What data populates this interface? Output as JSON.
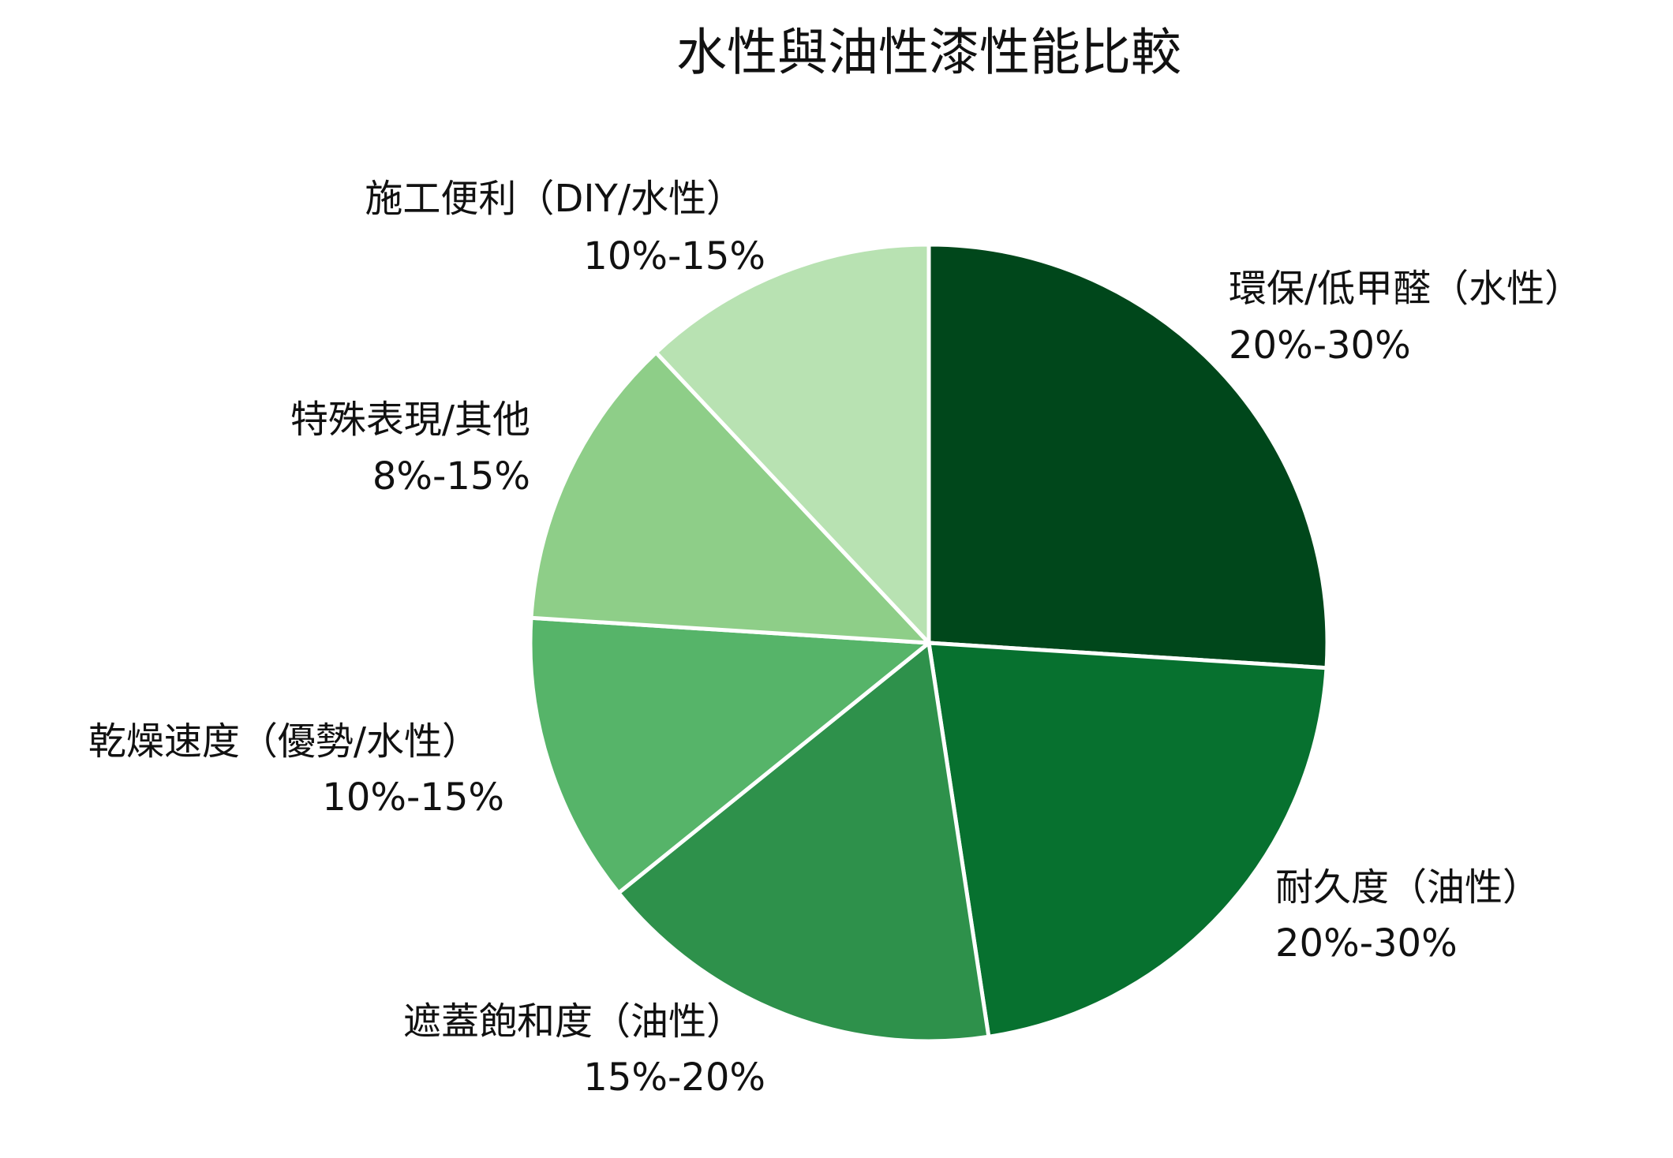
{
  "chart_data": {
    "type": "pie",
    "title": "水性與油性漆性能比較",
    "categories": [
      "環保/低甲醛（水性）",
      "耐久度（油性）",
      "遮蓋飽和度（油性）",
      "乾燥速度（優勢/水性）",
      "特殊表現/其他",
      "施工便利（DIY/水性）"
    ],
    "values": [
      26,
      21.6,
      16.6,
      11.8,
      12,
      12
    ],
    "ranges": [
      "20%-30%",
      "20%-30%",
      "15%-20%",
      "10%-15%",
      "8%-15%",
      "10%-15%"
    ],
    "colors": [
      "#00471b",
      "#07712f",
      "#2e914b",
      "#56b469",
      "#8ece88",
      "#b8e2b2"
    ]
  }
}
